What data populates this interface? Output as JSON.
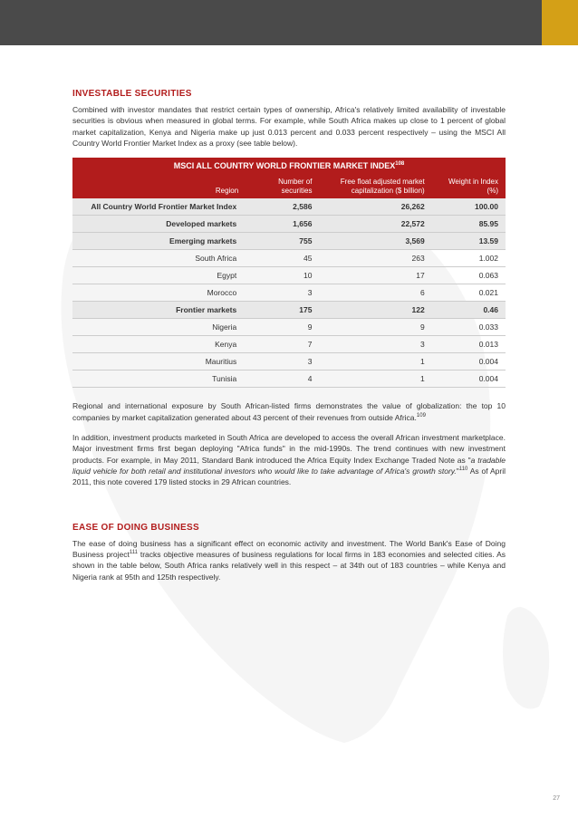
{
  "topbar": {
    "bg": "#4a4a4a",
    "accent": "#d4a017"
  },
  "section1": {
    "heading": "INVESTABLE SECURITIES",
    "para1": "Combined with investor mandates that restrict certain types of ownership, Africa's relatively limited availability of investable securities is obvious when measured in global terms. For example, while South Africa makes up close to 1 percent of global market capitalization, Kenya and Nigeria make up just 0.013 percent and 0.033 percent respectively – using the MSCI All Country World Frontier Market Index as a proxy (see table below).",
    "table": {
      "title": "MSCI ALL COUNTRY WORLD FRONTIER MARKET INDEX",
      "title_sup": "108",
      "headers": {
        "region": "Region",
        "num_line1": "Number of",
        "num_line2": "securities",
        "cap_line1": "Free float adjusted market",
        "cap_line2": "capitalization ($ billion)",
        "wt_line1": "Weight in Index",
        "wt_line2": "(%)"
      },
      "rows": [
        {
          "region": "All Country World Frontier Market Index",
          "num": "2,586",
          "cap": "26,262",
          "wt": "100.00",
          "bold": true
        },
        {
          "region": "Developed markets",
          "num": "1,656",
          "cap": "22,572",
          "wt": "85.95",
          "bold": true
        },
        {
          "region": "Emerging markets",
          "num": "755",
          "cap": "3,569",
          "wt": "13.59",
          "bold": true
        },
        {
          "region": "South Africa",
          "num": "45",
          "cap": "263",
          "wt": "1.002",
          "bold": false
        },
        {
          "region": "Egypt",
          "num": "10",
          "cap": "17",
          "wt": "0.063",
          "bold": false
        },
        {
          "region": "Morocco",
          "num": "3",
          "cap": "6",
          "wt": "0.021",
          "bold": false
        },
        {
          "region": "Frontier markets",
          "num": "175",
          "cap": "122",
          "wt": "0.46",
          "bold": true
        },
        {
          "region": "Nigeria",
          "num": "9",
          "cap": "9",
          "wt": "0.033",
          "bold": false
        },
        {
          "region": "Kenya",
          "num": "7",
          "cap": "3",
          "wt": "0.013",
          "bold": false
        },
        {
          "region": "Mauritius",
          "num": "3",
          "cap": "1",
          "wt": "0.004",
          "bold": false
        },
        {
          "region": "Tunisia",
          "num": "4",
          "cap": "1",
          "wt": "0.004",
          "bold": false
        }
      ]
    },
    "para2_a": "Regional and international exposure by South African-listed firms demonstrates the value of globalization: the top 10 companies by market capitalization generated about 43 percent of their revenues from outside Africa.",
    "para2_sup": "109",
    "para3_a": "In addition, investment products marketed in South Africa are developed to access the overall African investment marketplace. Major investment firms first began deploying \"Africa funds\" in the mid-1990s. The trend continues with new investment products. For example, in May 2011, Standard Bank introduced the Africa Equity Index Exchange Traded Note as \"",
    "para3_italic": "a tradable liquid vehicle for both retail and institutional investors who would like to take advantage of Africa's growth story.",
    "para3_b": "\"",
    "para3_sup": "110",
    "para3_c": " As of April 2011, this note covered 179 listed stocks in 29 African countries."
  },
  "section2": {
    "heading": "EASE OF DOING BUSINESS",
    "para1_a": "The ease of doing business has a significant effect on economic activity and investment. The World Bank's Ease of Doing Business project",
    "para1_sup": "111",
    "para1_b": " tracks objective measures of business regulations for local firms in 183 economies and selected cities. As shown in the table below, South Africa ranks relatively well in this respect – at 34th out of 183 countries – while Kenya and Nigeria rank at 95th and 125th respectively."
  },
  "page_number": "27",
  "colors": {
    "heading": "#b21c1c",
    "table_header_bg": "#b21c1c",
    "row_bold_bg": "#e8e8e8",
    "border": "#cccccc"
  }
}
